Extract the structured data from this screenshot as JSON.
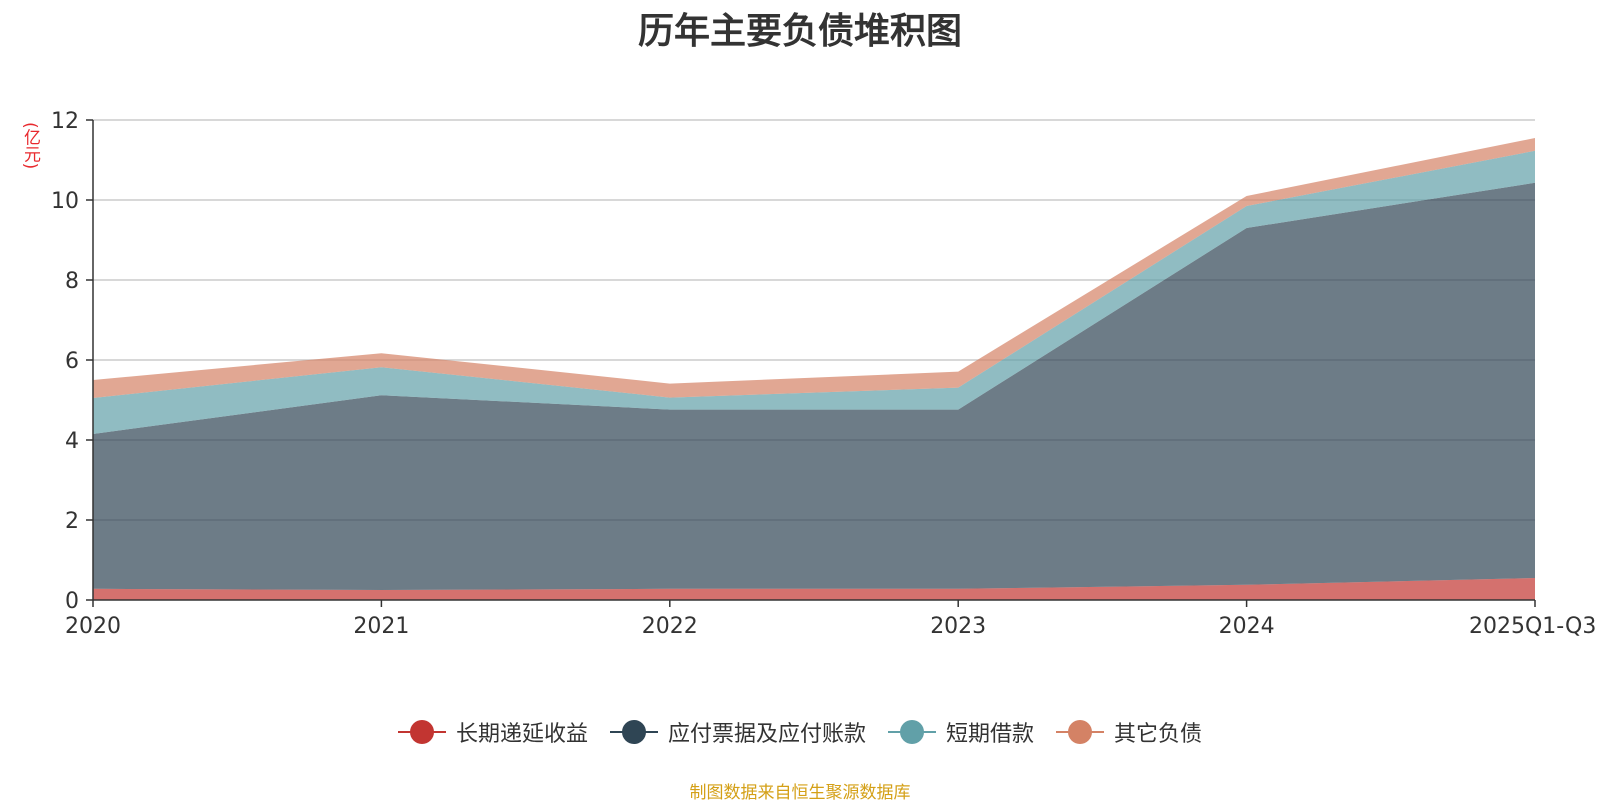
{
  "chart_data": {
    "type": "area",
    "stacked": true,
    "title": "历年主要负债堆积图",
    "ylabel": "(亿元)",
    "xlabel": "",
    "categories": [
      "2020",
      "2021",
      "2022",
      "2023",
      "2024",
      "2025Q1-Q3"
    ],
    "ylim": [
      0,
      12
    ],
    "yticks": [
      "0",
      "2",
      "4",
      "6",
      "8",
      "10",
      "12"
    ],
    "grid": true,
    "legend_position": "bottom",
    "series": [
      {
        "name": "长期递延收益",
        "color": "#c23531",
        "values": [
          0.28,
          0.25,
          0.28,
          0.28,
          0.38,
          0.55
        ]
      },
      {
        "name": "应付票据及应付账款",
        "color": "#2f4554",
        "values": [
          3.87,
          4.87,
          4.48,
          4.48,
          8.92,
          9.88
        ]
      },
      {
        "name": "短期借款",
        "color": "#61a0a8",
        "values": [
          0.9,
          0.7,
          0.3,
          0.55,
          0.55,
          0.8
        ]
      },
      {
        "name": "其它负债",
        "color": "#d48265",
        "values": [
          0.45,
          0.35,
          0.35,
          0.4,
          0.25,
          0.32
        ]
      }
    ]
  },
  "footer": "制图数据来自恒生聚源数据库"
}
